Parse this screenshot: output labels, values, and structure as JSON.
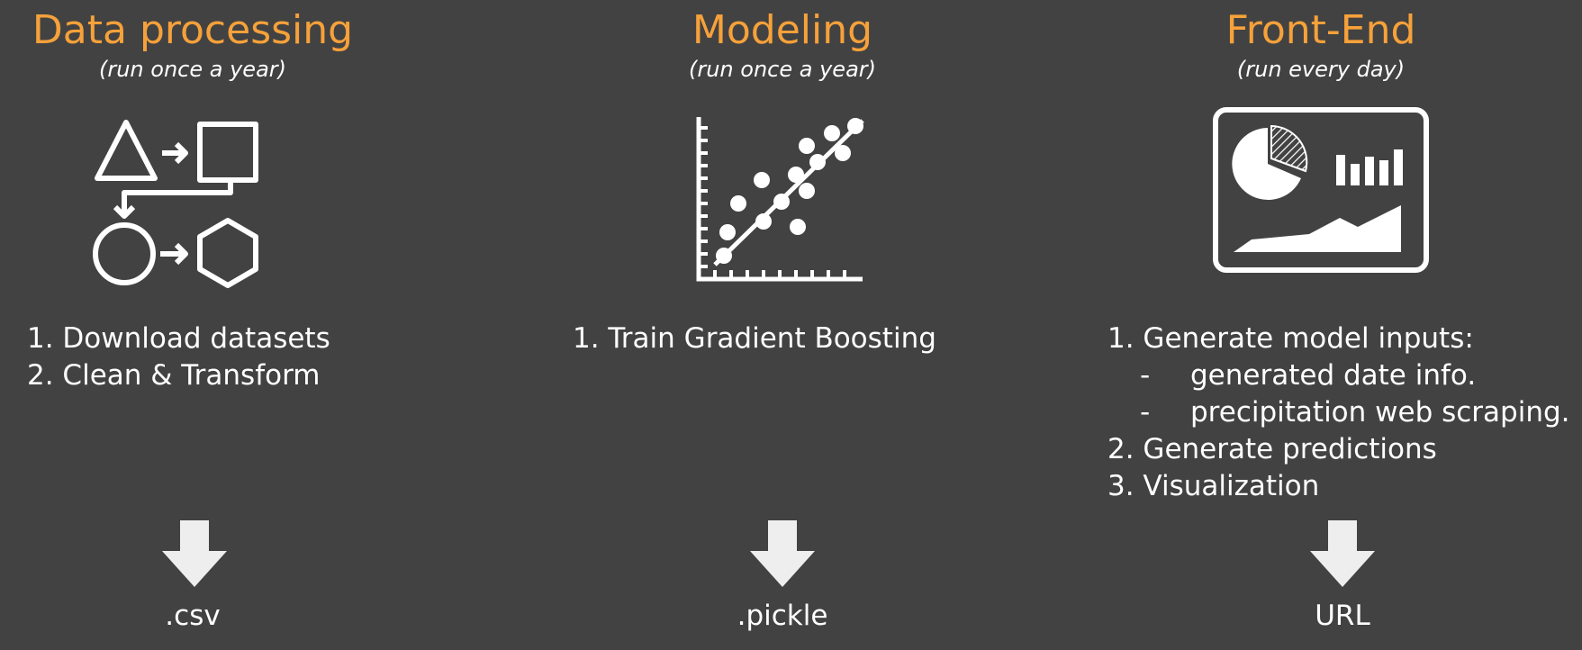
{
  "columns": [
    {
      "title": "Data processing",
      "subtitle": "(run once a year)",
      "icon": "data-transform-icon",
      "steps": [
        "1. Download datasets",
        "2.  Clean & Transform"
      ],
      "output": ".csv"
    },
    {
      "title": "Modeling",
      "subtitle": "(run once a year)",
      "icon": "scatter-regression-icon",
      "steps": [
        "1. Train Gradient Boosting"
      ],
      "output": ".pickle"
    },
    {
      "title": "Front-End",
      "subtitle": "(run every day)",
      "icon": "dashboard-icon",
      "steps": [
        "1. Generate model inputs:",
        {
          "bullet": "-",
          "text": "generated date info."
        },
        {
          "bullet": "-",
          "text": "precipitation web scraping."
        },
        "2. Generate predictions",
        "3. Visualization"
      ],
      "output": "URL"
    }
  ],
  "colors": {
    "background": "#424242",
    "title": "#f6a13a",
    "text": "#ffffff",
    "arrow": "#eeeeee"
  }
}
